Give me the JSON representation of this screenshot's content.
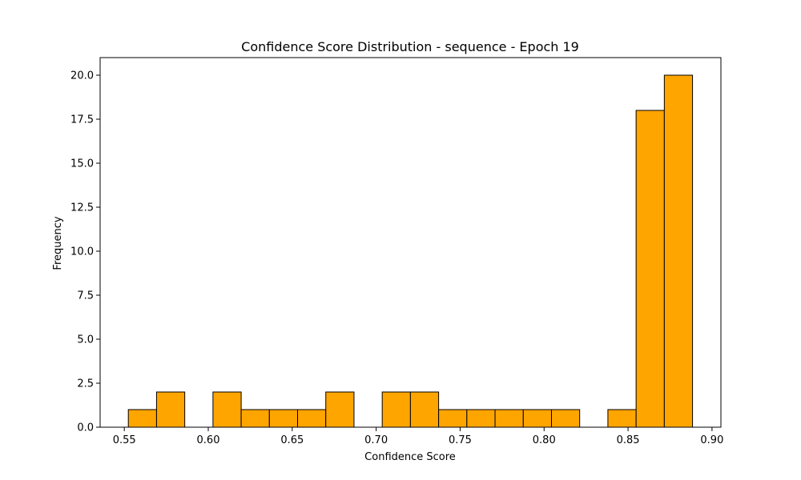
{
  "chart_data": {
    "type": "bar",
    "title": "Confidence Score Distribution - sequence - Epoch 19",
    "xlabel": "Confidence Score",
    "ylabel": "Frequency",
    "bar_color": "#ffa500",
    "edge_color": "#000000",
    "xlim": [
      0.5356,
      0.9053
    ],
    "ylim": [
      0,
      21.0
    ],
    "x_ticks": [
      0.55,
      0.6,
      0.65,
      0.7,
      0.75,
      0.8,
      0.85,
      0.9
    ],
    "x_tick_labels": [
      "0.55",
      "0.60",
      "0.65",
      "0.70",
      "0.75",
      "0.80",
      "0.85",
      "0.90"
    ],
    "y_ticks": [
      0.0,
      2.5,
      5.0,
      7.5,
      10.0,
      12.5,
      15.0,
      17.5,
      20.0
    ],
    "y_tick_labels": [
      "0.0",
      "2.5",
      "5.0",
      "7.5",
      "10.0",
      "12.5",
      "15.0",
      "17.5",
      "20.0"
    ],
    "bins": [
      {
        "start": 0.5524,
        "end": 0.5692,
        "count": 1
      },
      {
        "start": 0.5692,
        "end": 0.586,
        "count": 2
      },
      {
        "start": 0.586,
        "end": 0.6028,
        "count": 0
      },
      {
        "start": 0.6028,
        "end": 0.6196,
        "count": 2
      },
      {
        "start": 0.6196,
        "end": 0.6364,
        "count": 1
      },
      {
        "start": 0.6364,
        "end": 0.6532,
        "count": 1
      },
      {
        "start": 0.6532,
        "end": 0.67,
        "count": 1
      },
      {
        "start": 0.67,
        "end": 0.6868,
        "count": 2
      },
      {
        "start": 0.6868,
        "end": 0.7036,
        "count": 0
      },
      {
        "start": 0.7036,
        "end": 0.7204,
        "count": 2
      },
      {
        "start": 0.7204,
        "end": 0.7372,
        "count": 2
      },
      {
        "start": 0.7372,
        "end": 0.754,
        "count": 1
      },
      {
        "start": 0.754,
        "end": 0.7708,
        "count": 1
      },
      {
        "start": 0.7708,
        "end": 0.7876,
        "count": 1
      },
      {
        "start": 0.7876,
        "end": 0.8044,
        "count": 1
      },
      {
        "start": 0.8044,
        "end": 0.8212,
        "count": 1
      },
      {
        "start": 0.8212,
        "end": 0.838,
        "count": 0
      },
      {
        "start": 0.838,
        "end": 0.8548,
        "count": 1
      },
      {
        "start": 0.8548,
        "end": 0.8716,
        "count": 18
      },
      {
        "start": 0.8716,
        "end": 0.8884,
        "count": 20
      }
    ]
  }
}
